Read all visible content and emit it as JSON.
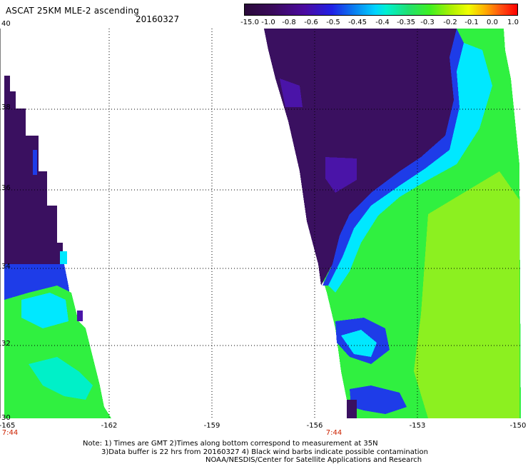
{
  "title": "ASCAT 25KM MLE-2 ascending",
  "date": "20160327",
  "colorbar": {
    "ticks": [
      "-15.0",
      "-1.0",
      "-0.8",
      "-0.6",
      "-0.5",
      "-0.45",
      "-0.4",
      "-0.35",
      "-0.3",
      "-0.2",
      "-0.1",
      "0.0",
      "1.0"
    ],
    "colors": [
      "#2a0a3a",
      "#3a0a5a",
      "#4b0aa0",
      "#2020e6",
      "#0a7cf0",
      "#00d4ff",
      "#00f0d0",
      "#20e070",
      "#40f020",
      "#b0f000",
      "#f0ff00",
      "#ffb000",
      "#ff0000"
    ]
  },
  "axes": {
    "lat_labels": [
      "40",
      "38",
      "36",
      "34",
      "32",
      "30"
    ],
    "lon_labels": [
      "-165",
      "-162",
      "-159",
      "-156",
      "-153",
      "-150"
    ],
    "time_labels": [
      "7:44",
      "7:44"
    ]
  },
  "notes": {
    "line1": "Note: 1) Times are GMT 2)Times along bottom correspond to measurement at 35N",
    "line2": "3)Data buffer is 22 hrs from 20160327 4) Black wind barbs indicate possible contamination",
    "line3": "NOAA/NESDIS/Center for Satellite Applications and Research"
  },
  "swath_colors": {
    "deep": "#3a1060",
    "violet": "#4a14a8",
    "blue": "#1e3ce8",
    "cyan": "#00e8ff",
    "aqua": "#00f0c8",
    "green": "#30f040",
    "lime": "#8cf020"
  }
}
